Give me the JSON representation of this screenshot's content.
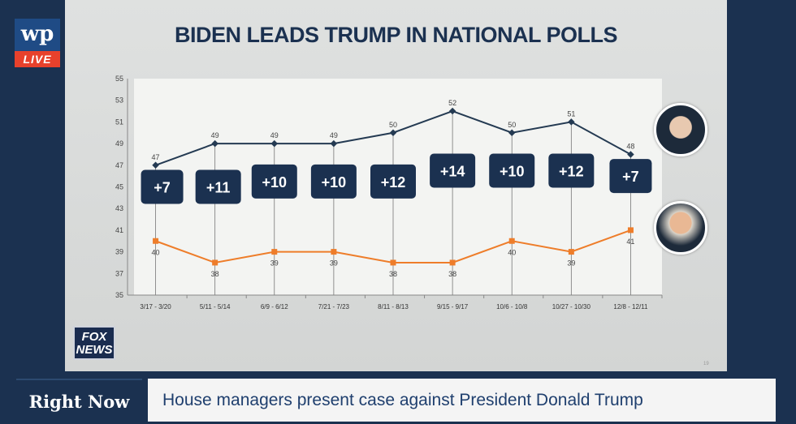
{
  "logo": {
    "wp": "wp",
    "live": "LIVE"
  },
  "slide": {
    "title": "BIDEN LEADS TRUMP IN NATIONAL POLLS",
    "network": "FOX NEWS",
    "page_number": "19"
  },
  "banner": {
    "label": "Right Now",
    "headline": "House managers present case against President Donald Trump"
  },
  "chart_data": {
    "type": "line",
    "title": "BIDEN LEADS TRUMP IN NATIONAL POLLS",
    "categories": [
      "3/17 - 3/20",
      "5/11 - 5/14",
      "6/9 - 6/12",
      "7/21 - 7/23",
      "8/11 - 8/13",
      "9/15 - 9/17",
      "10/6 - 10/8",
      "10/27 - 10/30",
      "12/8 - 12/11"
    ],
    "series": [
      {
        "name": "Biden",
        "color": "#243a52",
        "values": [
          47,
          49,
          49,
          49,
          50,
          52,
          50,
          51,
          48
        ]
      },
      {
        "name": "Trump",
        "color": "#ee7d2a",
        "values": [
          40,
          38,
          39,
          39,
          38,
          38,
          40,
          39,
          41
        ]
      }
    ],
    "margins": [
      "+7",
      "+11",
      "+10",
      "+10",
      "+12",
      "+14",
      "+10",
      "+12",
      "+7"
    ],
    "ylim": [
      35,
      55
    ],
    "yticks": [
      35,
      37,
      39,
      41,
      43,
      45,
      47,
      49,
      51,
      53,
      55
    ],
    "grid": false
  }
}
